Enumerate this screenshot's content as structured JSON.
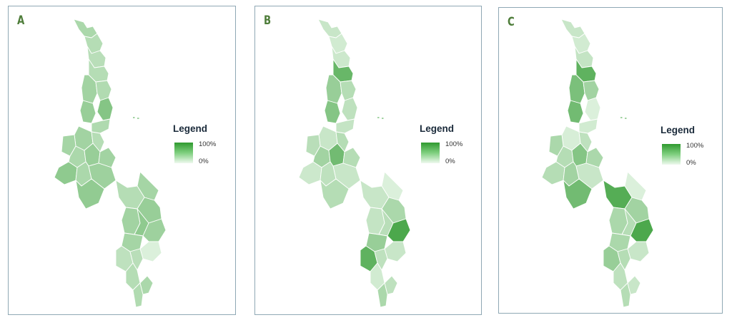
{
  "panels": [
    {
      "label": "A",
      "legend": {
        "title": "Legend",
        "max": "100%",
        "min": "0%"
      },
      "region_shades": [
        0.35,
        0.3,
        0.28,
        0.3,
        0.4,
        0.32,
        0.45,
        0.55,
        0.33,
        0.4,
        0.3,
        0.38,
        0.35,
        0.45,
        0.4,
        0.5,
        0.35,
        0.42,
        0.48,
        0.38,
        0.3,
        0.45,
        0.4,
        0.5,
        0.42,
        0.38,
        0.1,
        0.25,
        0.28,
        0.3,
        0.32,
        0.35
      ]
    },
    {
      "label": "B",
      "legend": {
        "title": "Legend",
        "max": "100%",
        "min": "0%"
      },
      "region_shades": [
        0.2,
        0.15,
        0.18,
        0.7,
        0.45,
        0.3,
        0.55,
        0.25,
        0.22,
        0.2,
        0.3,
        0.28,
        0.4,
        0.65,
        0.3,
        0.18,
        0.25,
        0.2,
        0.3,
        0.1,
        0.2,
        0.35,
        0.22,
        0.28,
        0.85,
        0.45,
        0.2,
        0.75,
        0.25,
        0.15,
        0.35,
        0.25
      ]
    },
    {
      "label": "C",
      "legend": {
        "title": "Legend",
        "max": "100%",
        "min": "0%"
      },
      "region_shades": [
        0.2,
        0.15,
        0.22,
        0.75,
        0.6,
        0.4,
        0.65,
        0.1,
        0.15,
        0.12,
        0.25,
        0.35,
        0.3,
        0.55,
        0.35,
        0.3,
        0.4,
        0.2,
        0.65,
        0.1,
        0.8,
        0.4,
        0.35,
        0.3,
        0.85,
        0.35,
        0.2,
        0.45,
        0.3,
        0.25,
        0.3,
        0.2
      ]
    }
  ],
  "colors": {
    "low": "#eef9ee",
    "high": "#2f9a2f",
    "border": "#ffffff",
    "frame": "#8fa8b4",
    "label": "#4e7d3a",
    "legend_title": "#1a2a3a"
  }
}
